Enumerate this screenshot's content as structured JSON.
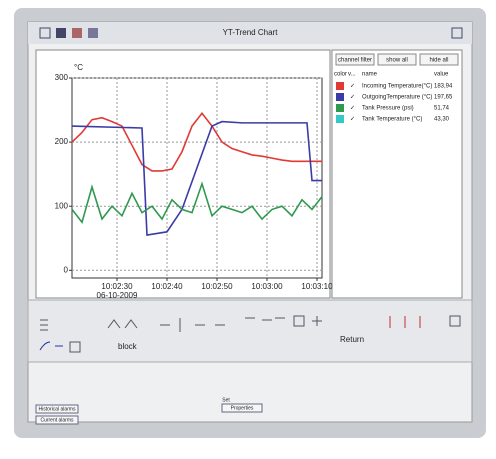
{
  "window": {
    "title": "YT-Trend Chart"
  },
  "chart_data": {
    "type": "line",
    "y_label": "°C",
    "ylim": [
      -12,
      300
    ],
    "yticks": [
      0,
      100,
      200,
      300
    ],
    "grid": true,
    "xlim": [
      "10:02:21",
      "10:03:11"
    ],
    "xticks": [
      "10:02:30",
      "10:02:40",
      "10:02:50",
      "10:03:00",
      "10:03:10"
    ],
    "x_date": "06-10-2009",
    "series": [
      {
        "color": "#e03a35",
        "x": [
          "10:02:21",
          "10:02:23",
          "10:02:25",
          "10:02:27",
          "10:02:29",
          "10:02:31",
          "10:02:33",
          "10:02:35",
          "10:02:37",
          "10:02:39",
          "10:02:41",
          "10:02:43",
          "10:02:45",
          "10:02:47",
          "10:02:49",
          "10:02:51",
          "10:02:53",
          "10:02:55",
          "10:02:57",
          "10:02:59",
          "10:03:01",
          "10:03:03",
          "10:03:05",
          "10:03:07",
          "10:03:09",
          "10:03:11"
        ],
        "values": [
          200,
          215,
          235,
          238,
          232,
          225,
          195,
          165,
          155,
          155,
          158,
          185,
          225,
          245,
          225,
          200,
          190,
          185,
          180,
          178,
          175,
          172,
          170,
          170,
          170,
          170
        ]
      },
      {
        "color": "#3b3ba8",
        "x": [
          "10:02:21",
          "10:02:35",
          "10:02:36",
          "10:02:40",
          "10:02:43",
          "10:02:46",
          "10:02:49",
          "10:02:51",
          "10:02:55",
          "10:03:01",
          "10:03:08",
          "10:03:09",
          "10:03:11"
        ],
        "values": [
          225,
          222,
          55,
          60,
          95,
          160,
          225,
          232,
          230,
          230,
          230,
          140,
          140
        ]
      },
      {
        "color": "#2f9a4f",
        "x": [
          "10:02:21",
          "10:02:23",
          "10:02:25",
          "10:02:27",
          "10:02:29",
          "10:02:31",
          "10:02:33",
          "10:02:35",
          "10:02:37",
          "10:02:39",
          "10:02:41",
          "10:02:43",
          "10:02:45",
          "10:02:47",
          "10:02:49",
          "10:02:51",
          "10:02:53",
          "10:02:55",
          "10:02:57",
          "10:02:59",
          "10:03:01",
          "10:03:03",
          "10:03:05",
          "10:03:07",
          "10:03:09",
          "10:03:11"
        ],
        "values": [
          95,
          75,
          130,
          80,
          100,
          85,
          120,
          90,
          100,
          80,
          110,
          95,
          90,
          135,
          85,
          100,
          95,
          90,
          100,
          80,
          95,
          100,
          85,
          110,
          95,
          115
        ]
      }
    ]
  },
  "channels": {
    "buttons": [
      "channel filter",
      "show all",
      "hide all"
    ],
    "header": [
      "color",
      "v...",
      "name",
      "value"
    ],
    "rows": [
      {
        "color": "#e03a35",
        "check": "✓",
        "name": "Incoming Temperature(°C)",
        "value": "183,94"
      },
      {
        "color": "#3b3ba8",
        "check": "✓",
        "name": "OutgoingTemperature (°C)",
        "value": "197,65"
      },
      {
        "color": "#2f9a4f",
        "check": "✓",
        "name": "Tank Pressure (psi)",
        "value": "51,74"
      },
      {
        "color": "#33c9c9",
        "check": "✓",
        "name": "Tank Temperature (°C)",
        "value": "43,30"
      }
    ]
  },
  "toolbar": {
    "block": "block",
    "return": "Return"
  },
  "bottom": {
    "historical": "Historical alarms",
    "current": "Current alarms",
    "set": "Set",
    "properties": "Properties"
  }
}
